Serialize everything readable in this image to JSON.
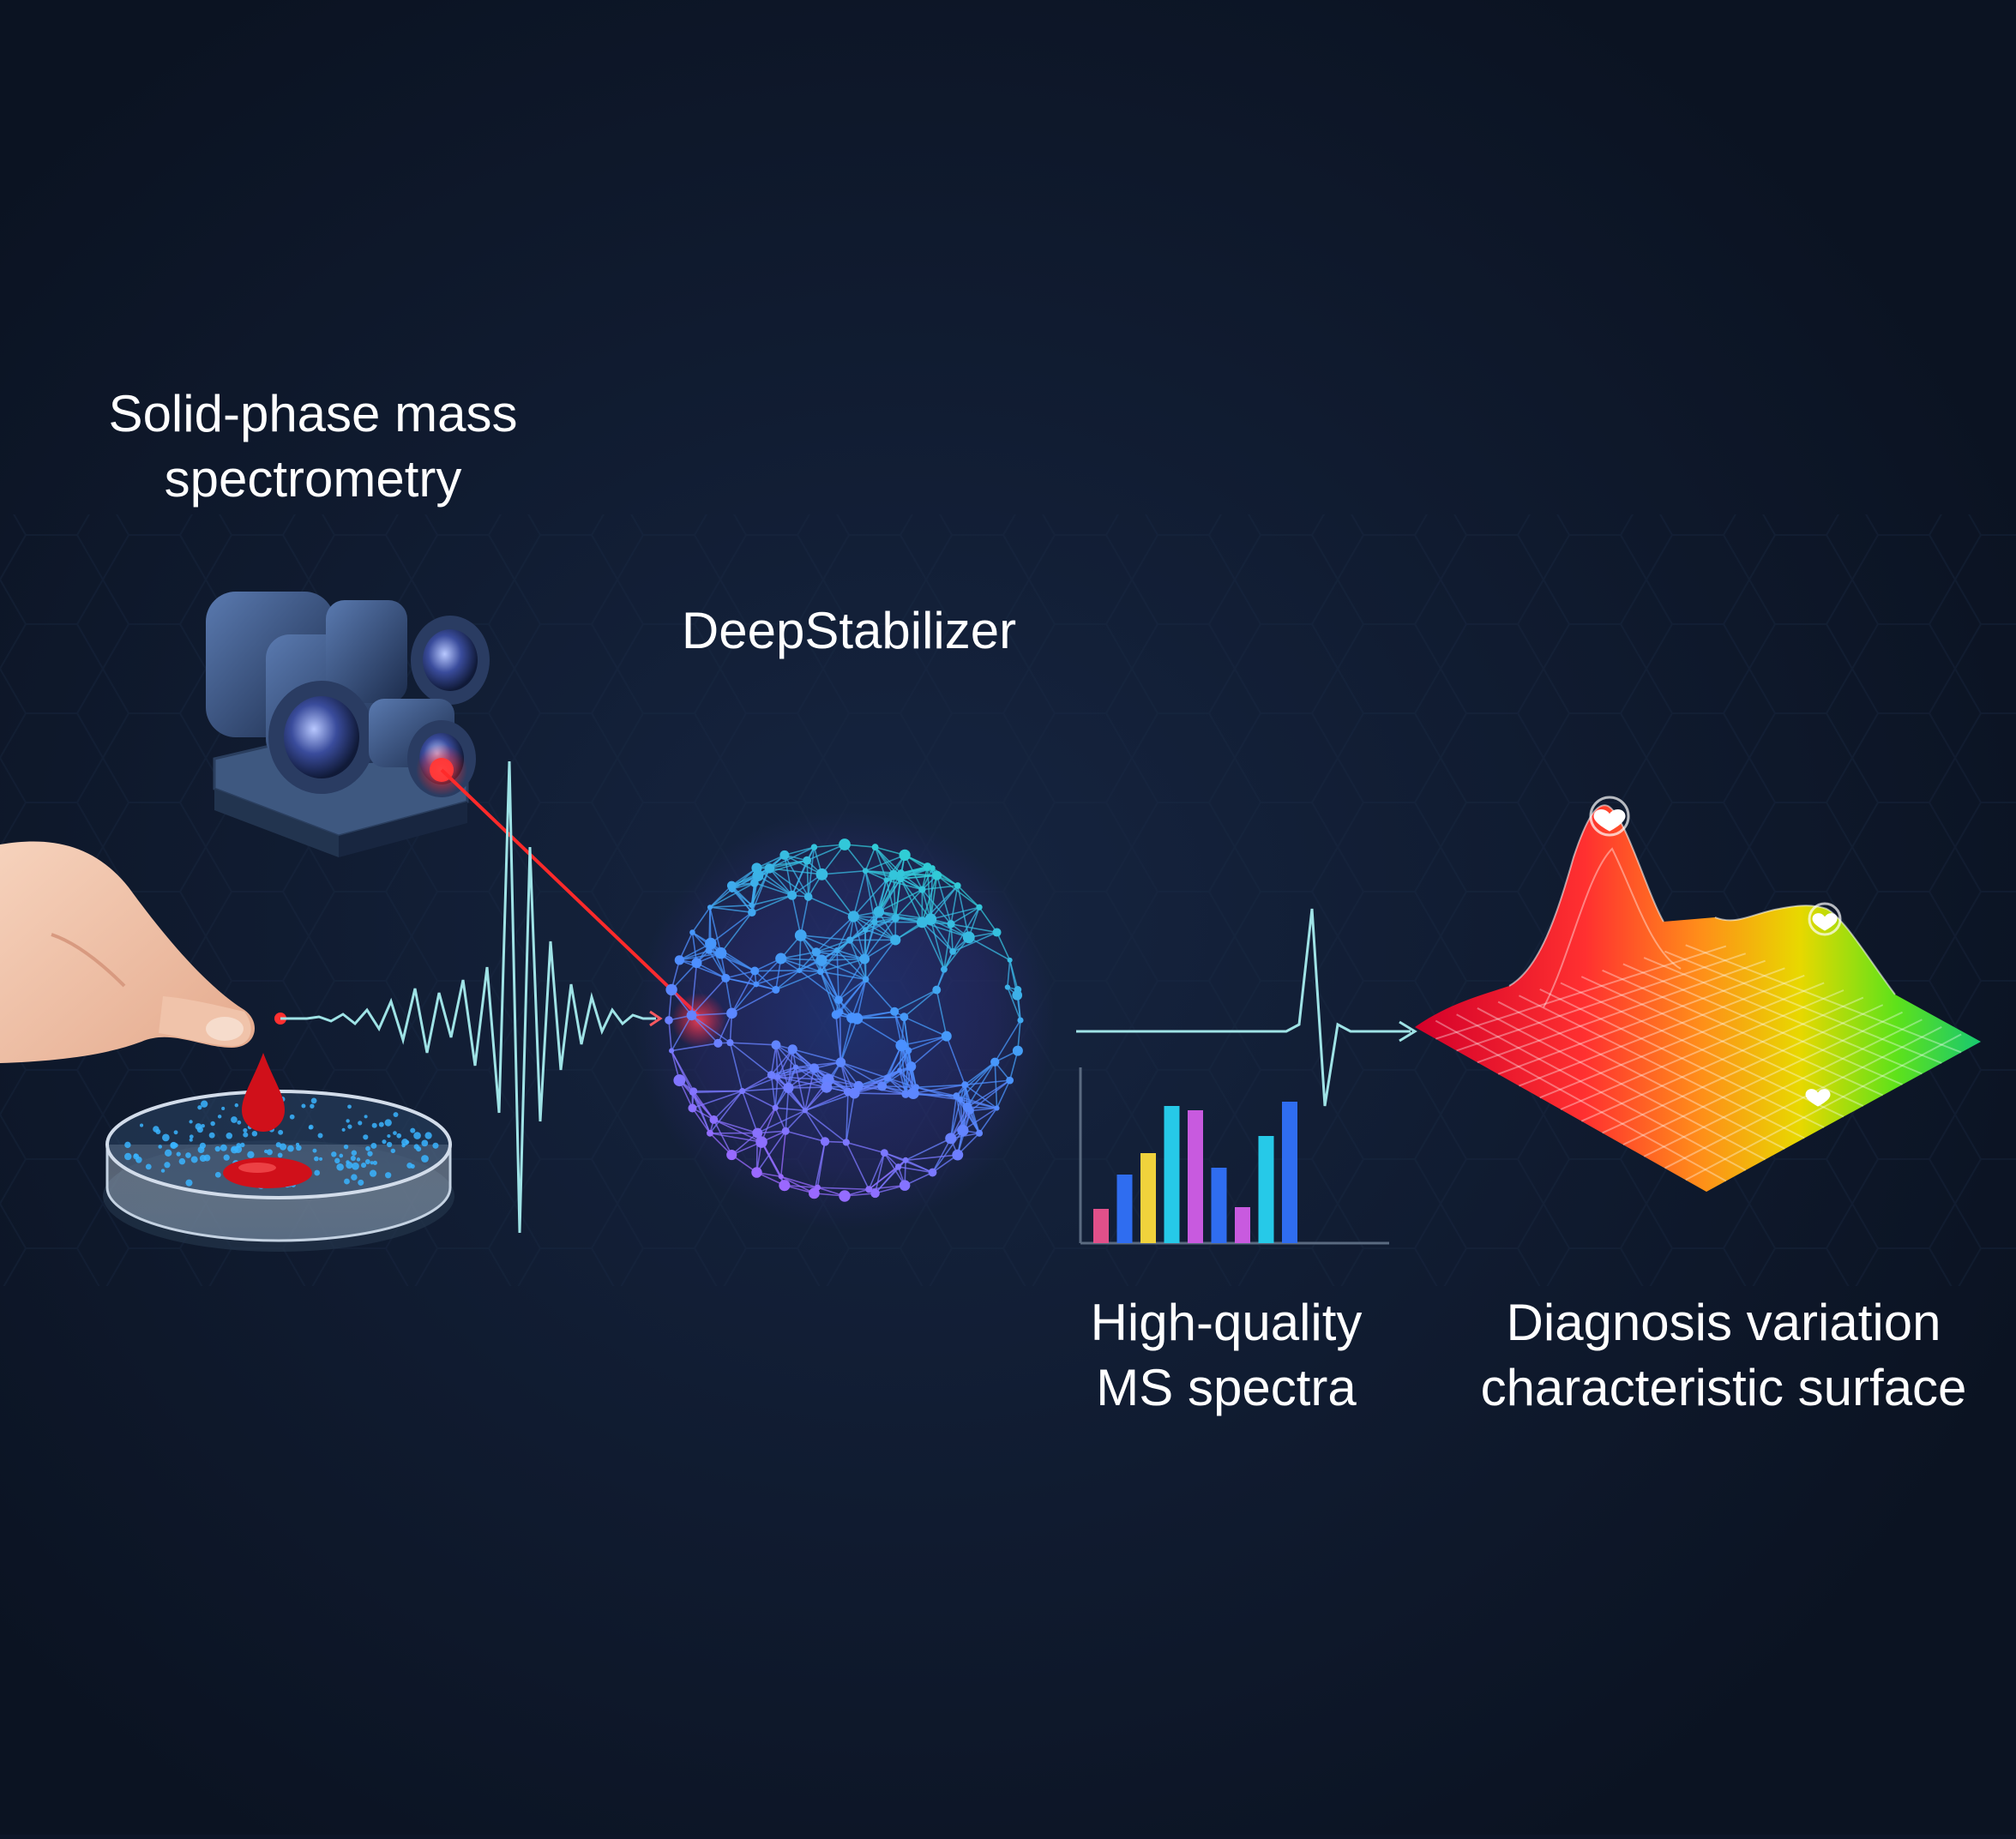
{
  "labels": {
    "solid_phase": [
      "Solid-phase mass",
      "spectrometry"
    ],
    "deepstabilizer": "DeepStabilizer",
    "high_quality": [
      "High-quality",
      "MS spectra"
    ],
    "diagnosis": [
      "Diagnosis variation",
      "characteristic surface"
    ]
  },
  "colors": {
    "background": "#0d1628",
    "laser": "#ff2a2a",
    "blood": "#d0101a",
    "signal": "#9fe3e6",
    "sphere_top": "#28e0c8",
    "sphere_bottom": "#b45cff",
    "bars": [
      "#e0508a",
      "#2f6df0",
      "#f0d23c",
      "#26c9e8",
      "#c85adf",
      "#2f6df0",
      "#c85adf",
      "#26c9e8",
      "#2f6df0"
    ]
  },
  "icons": [
    "mass-spectrometer-icon",
    "hand-icon",
    "petri-dish-icon",
    "blood-drop-icon",
    "neural-sphere-icon",
    "heart-marker-icon"
  ]
}
